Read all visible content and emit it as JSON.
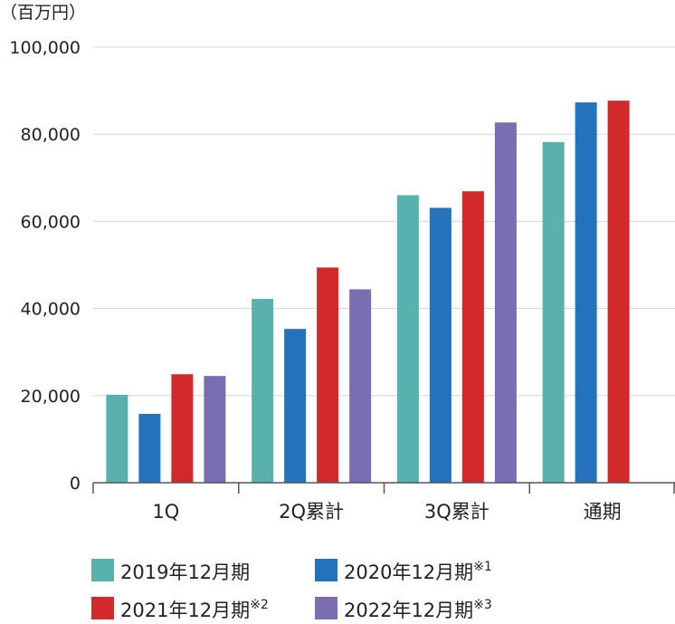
{
  "chart_data": {
    "type": "bar",
    "unit_label": "（百万円）",
    "categories": [
      "1Q",
      "2Q累計",
      "3Q累計",
      "通期"
    ],
    "yticks": [
      "0",
      "20,000",
      "40,000",
      "60,000",
      "80,000",
      "100,000"
    ],
    "ylim": [
      0,
      100000
    ],
    "grid": true,
    "legend_position": "bottom",
    "series": [
      {
        "name": "2019年12月期",
        "note": "",
        "color": "#58b1ac",
        "values": [
          20200,
          42200,
          66000,
          78200
        ]
      },
      {
        "name": "2020年12月期",
        "note": "※1",
        "color": "#2472bb",
        "values": [
          15800,
          35300,
          63100,
          87300
        ]
      },
      {
        "name": "2021年12月期",
        "note": "※2",
        "color": "#d3292a",
        "values": [
          24900,
          49400,
          66900,
          87700
        ]
      },
      {
        "name": "2022年12月期",
        "note": "※3",
        "color": "#7a6db2",
        "values": [
          24500,
          44400,
          82700,
          null
        ]
      }
    ]
  }
}
